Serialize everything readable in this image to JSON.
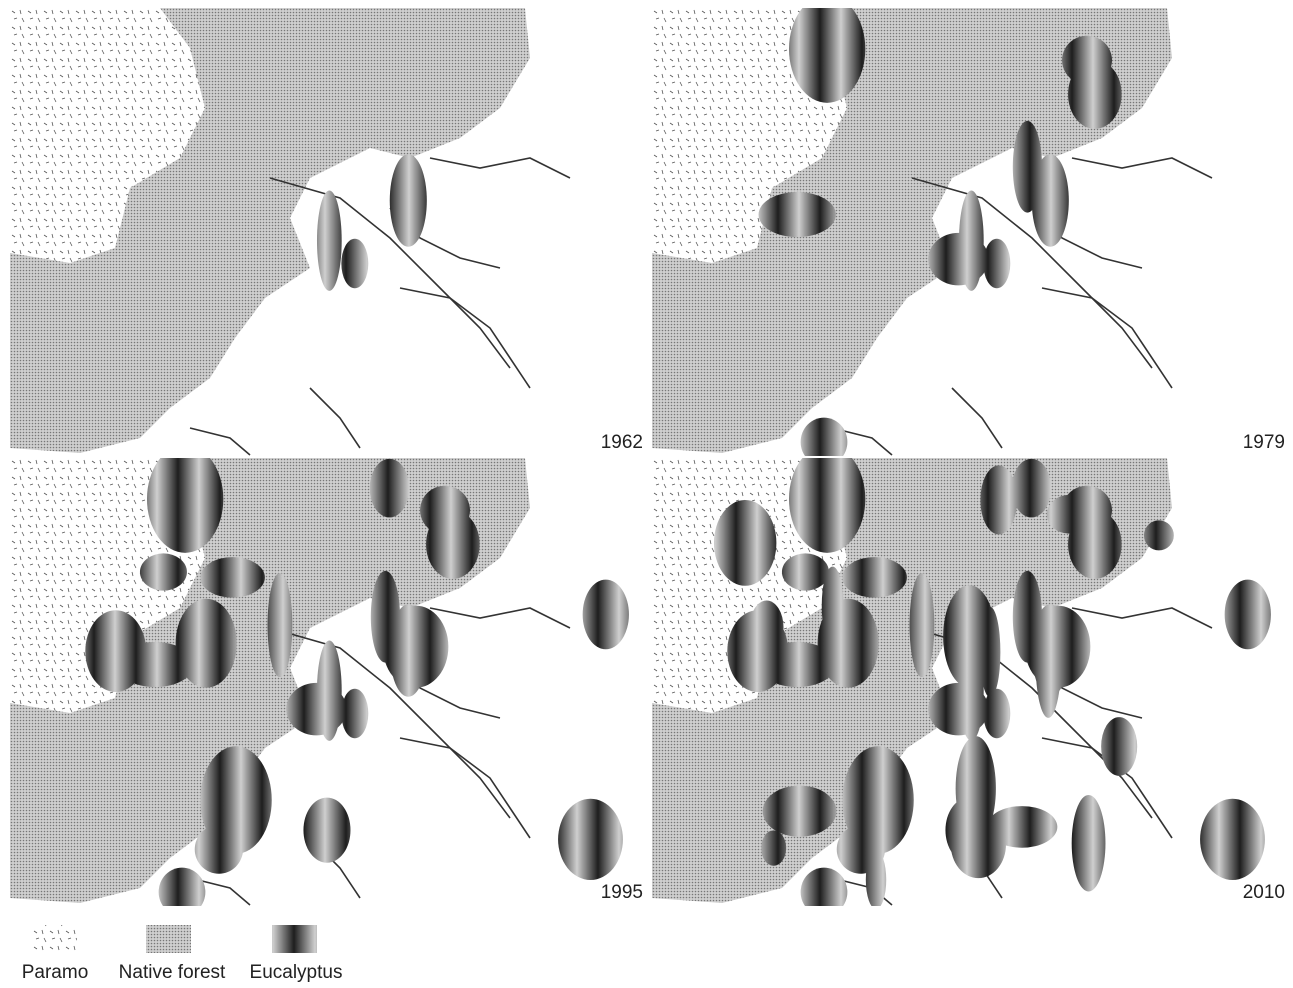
{
  "maps": [
    {
      "year": "1962"
    },
    {
      "year": "1979"
    },
    {
      "year": "1995"
    },
    {
      "year": "2010"
    }
  ],
  "legend": [
    {
      "label": "Paramo"
    },
    {
      "label": "Native forest"
    },
    {
      "label": "Eucalyptus"
    }
  ]
}
